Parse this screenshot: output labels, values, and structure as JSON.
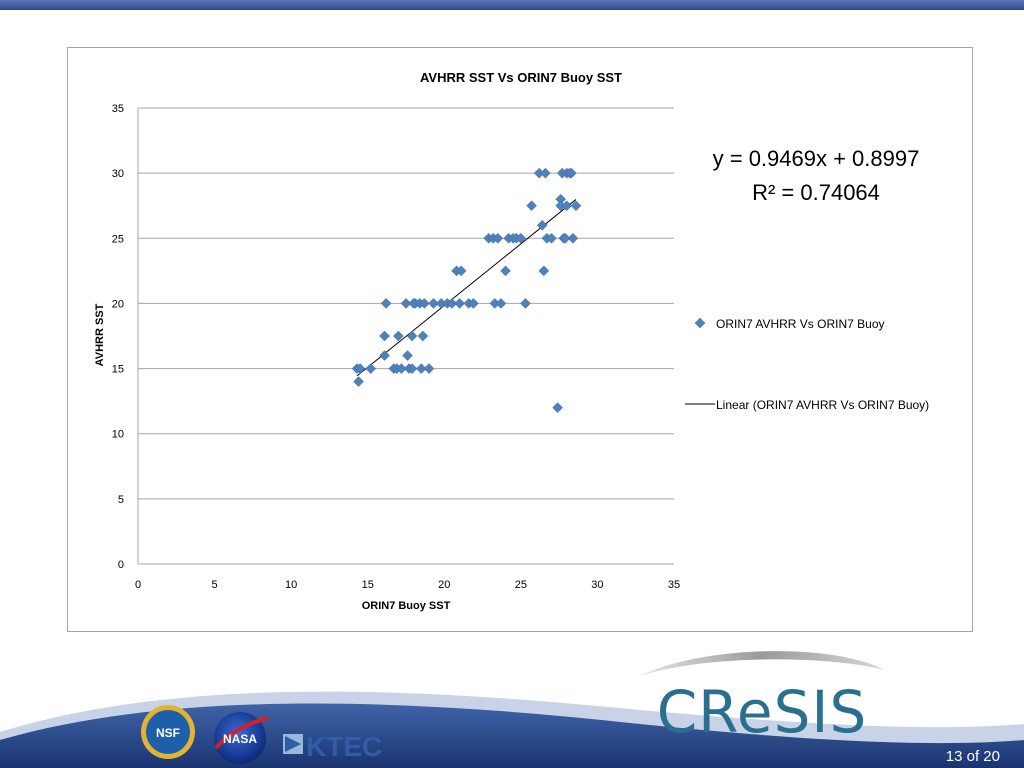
{
  "slide": {
    "page_label": "13 of 20",
    "accent_color": "#2e4d8c",
    "logos": {
      "nsf": "NSF",
      "nasa": "NASA",
      "ktec": "KTEC",
      "cresis": "CReSIS"
    }
  },
  "chart_data": {
    "type": "scatter",
    "title": "AVHRR SST Vs ORIN7 Buoy SST",
    "xlabel": "ORIN7 Buoy SST",
    "ylabel": "AVHRR SST",
    "xlim": [
      0,
      35
    ],
    "ylim": [
      0,
      35
    ],
    "xticks": [
      0,
      5,
      10,
      15,
      20,
      25,
      30,
      35
    ],
    "yticks": [
      0,
      5,
      10,
      15,
      20,
      25,
      30,
      35
    ],
    "grid": "horizontal",
    "legend_position": "right",
    "marker_color": "#4f81bd",
    "line_color": "#000000",
    "series": [
      {
        "name": "ORIN7 AVHRR Vs ORIN7 Buoy",
        "marker": "diamond",
        "points": [
          [
            14.3,
            15
          ],
          [
            14.5,
            15
          ],
          [
            14.4,
            14
          ],
          [
            15.2,
            15
          ],
          [
            16.1,
            17.5
          ],
          [
            16.2,
            20
          ],
          [
            16.1,
            16
          ],
          [
            16.7,
            15
          ],
          [
            17.0,
            17.5
          ],
          [
            16.9,
            15
          ],
          [
            17.2,
            15
          ],
          [
            17.5,
            20
          ],
          [
            17.6,
            16
          ],
          [
            17.7,
            15
          ],
          [
            17.9,
            17.5
          ],
          [
            17.9,
            15
          ],
          [
            18.0,
            20
          ],
          [
            18.1,
            20
          ],
          [
            18.4,
            20
          ],
          [
            18.5,
            15
          ],
          [
            18.6,
            17.5
          ],
          [
            18.7,
            20
          ],
          [
            19.0,
            15
          ],
          [
            19.3,
            20
          ],
          [
            19.8,
            20
          ],
          [
            20.2,
            20
          ],
          [
            20.5,
            20
          ],
          [
            20.8,
            22.5
          ],
          [
            21.0,
            20
          ],
          [
            21.1,
            22.5
          ],
          [
            21.6,
            20
          ],
          [
            21.9,
            20
          ],
          [
            22.9,
            25
          ],
          [
            23.2,
            25
          ],
          [
            23.3,
            20
          ],
          [
            23.5,
            25
          ],
          [
            23.7,
            20
          ],
          [
            24.0,
            22.5
          ],
          [
            24.2,
            25
          ],
          [
            24.5,
            25
          ],
          [
            24.7,
            25
          ],
          [
            25.0,
            25
          ],
          [
            25.3,
            20
          ],
          [
            25.7,
            27.5
          ],
          [
            26.2,
            30
          ],
          [
            26.4,
            26
          ],
          [
            26.5,
            22.5
          ],
          [
            26.6,
            30
          ],
          [
            26.7,
            25
          ],
          [
            27.0,
            25
          ],
          [
            27.4,
            12
          ],
          [
            27.6,
            28
          ],
          [
            27.6,
            27.5
          ],
          [
            27.7,
            30
          ],
          [
            27.8,
            25
          ],
          [
            27.9,
            25
          ],
          [
            28.0,
            30
          ],
          [
            28.0,
            27.5
          ],
          [
            28.2,
            30
          ],
          [
            28.3,
            30
          ],
          [
            28.4,
            25
          ],
          [
            28.6,
            27.5
          ]
        ]
      },
      {
        "name": "Linear (ORIN7 AVHRR Vs ORIN7 Buoy)",
        "type": "trendline",
        "slope": 0.9469,
        "intercept": 0.8997,
        "x_range": [
          14.3,
          28.6
        ]
      }
    ],
    "annotation": {
      "equation": "y = 0.9469x + 0.8997",
      "r_squared": "R² = 0.74064"
    }
  }
}
